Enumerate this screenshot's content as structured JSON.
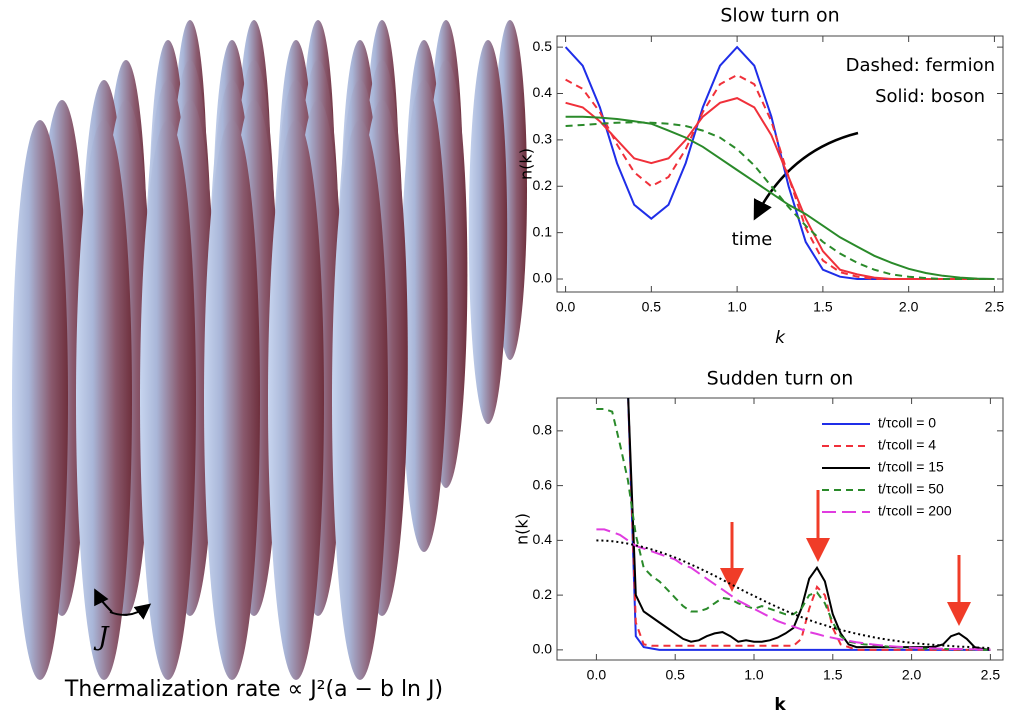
{
  "illustration": {
    "label": "J",
    "caption": "Thermalization rate ∝ J²(a − b ln J)"
  },
  "chart_data": [
    {
      "type": "line",
      "title": "Slow turn on",
      "x_label": "k",
      "y_label": "n(k)",
      "annotations": [
        "Dashed: fermion",
        "Solid: boson",
        "time"
      ],
      "xlim": [
        -0.05,
        2.55
      ],
      "ylim": [
        -0.028,
        0.524
      ],
      "xticks": [
        {
          "value": 0,
          "label": "0.0"
        },
        0.5,
        {
          "value": 1,
          "label": "1.0"
        },
        1.5,
        {
          "value": 2,
          "label": "2.0"
        },
        2.5
      ],
      "yticks": [
        {
          "value": 0,
          "label": "0.0"
        },
        0.1,
        0.2,
        0.3,
        0.4,
        0.5
      ],
      "x": [
        0,
        0.1,
        0.2,
        0.3,
        0.4,
        0.5,
        0.6,
        0.7,
        0.8,
        0.9,
        1.0,
        1.1,
        1.2,
        1.3,
        1.4,
        1.5,
        1.6,
        1.7,
        1.8,
        1.9,
        2.0,
        2.1,
        2.2,
        2.3,
        2.4,
        2.5
      ],
      "series": [
        {
          "color": "#1f2ee8",
          "style": "solid",
          "values": [
            0.5,
            0.46,
            0.37,
            0.25,
            0.16,
            0.13,
            0.16,
            0.25,
            0.37,
            0.46,
            0.5,
            0.46,
            0.35,
            0.2,
            0.08,
            0.02,
            0.005,
            0,
            0,
            0,
            0,
            0,
            0,
            0,
            0,
            0
          ]
        },
        {
          "color": "#f0303a",
          "style": "dashed",
          "values": [
            0.43,
            0.41,
            0.36,
            0.29,
            0.23,
            0.2,
            0.22,
            0.28,
            0.36,
            0.42,
            0.44,
            0.42,
            0.34,
            0.22,
            0.11,
            0.04,
            0.015,
            0.005,
            0,
            0,
            0,
            0,
            0,
            0,
            0,
            0
          ]
        },
        {
          "color": "#f0303a",
          "style": "solid",
          "values": [
            0.38,
            0.37,
            0.34,
            0.3,
            0.26,
            0.25,
            0.26,
            0.3,
            0.35,
            0.38,
            0.39,
            0.37,
            0.31,
            0.22,
            0.13,
            0.06,
            0.02,
            0.01,
            0.003,
            0,
            0,
            0,
            0,
            0,
            0,
            0
          ]
        },
        {
          "color": "#2a8a2a",
          "style": "dashed",
          "values": [
            0.33,
            0.332,
            0.335,
            0.337,
            0.338,
            0.337,
            0.335,
            0.33,
            0.32,
            0.305,
            0.28,
            0.245,
            0.2,
            0.155,
            0.115,
            0.08,
            0.055,
            0.035,
            0.02,
            0.01,
            0.005,
            0.002,
            0,
            0,
            0,
            0
          ]
        },
        {
          "color": "#2a8a2a",
          "style": "solid",
          "values": [
            0.35,
            0.35,
            0.348,
            0.345,
            0.34,
            0.335,
            0.32,
            0.305,
            0.285,
            0.26,
            0.235,
            0.21,
            0.185,
            0.16,
            0.14,
            0.115,
            0.09,
            0.07,
            0.05,
            0.035,
            0.022,
            0.013,
            0.007,
            0.003,
            0.001,
            0
          ]
        }
      ]
    },
    {
      "type": "line",
      "title": "Sudden turn on",
      "x_label": "k",
      "y_label": "n(k)",
      "xlim": [
        -0.25,
        2.58
      ],
      "ylim": [
        -0.037,
        0.92
      ],
      "xticks": [
        {
          "value": 0,
          "label": "0.0"
        },
        0.5,
        {
          "value": 1,
          "label": "1.0"
        },
        1.5,
        {
          "value": 2,
          "label": "2.0"
        },
        2.5
      ],
      "yticks": [
        {
          "value": 0,
          "label": "0.0"
        },
        0.2,
        0.4,
        0.6,
        0.8
      ],
      "x": [
        0,
        0.05,
        0.1,
        0.15,
        0.2,
        0.25,
        0.3,
        0.35,
        0.4,
        0.45,
        0.5,
        0.55,
        0.6,
        0.65,
        0.7,
        0.75,
        0.8,
        0.85,
        0.9,
        0.95,
        1.0,
        1.05,
        1.1,
        1.15,
        1.2,
        1.25,
        1.3,
        1.35,
        1.4,
        1.45,
        1.5,
        1.55,
        1.6,
        1.65,
        1.7,
        1.75,
        1.8,
        1.85,
        1.9,
        1.95,
        2.0,
        2.05,
        2.1,
        2.15,
        2.2,
        2.25,
        2.3,
        2.35,
        2.4,
        2.45,
        2.5
      ],
      "series": [
        {
          "name": "t/τcoll = 0",
          "color": "#1f2ee8",
          "style": "solid",
          "values": [
            null,
            null,
            null,
            null,
            0.95,
            0.05,
            0.01,
            0.005,
            0,
            0,
            0,
            0,
            0,
            0,
            0,
            0,
            0,
            0,
            0,
            0,
            0,
            0,
            0,
            0,
            0,
            0,
            0,
            0,
            0,
            0,
            0,
            0,
            0,
            0,
            0,
            0,
            0,
            0,
            0,
            0,
            0,
            0,
            0,
            0,
            0,
            0,
            0,
            0,
            0,
            0,
            0
          ]
        },
        {
          "name": "t/τcoll = 4",
          "color": "#f0303a",
          "style": "dashed",
          "values": [
            null,
            null,
            null,
            null,
            0.95,
            0.1,
            0.02,
            0.015,
            0.015,
            0.015,
            0.015,
            0.015,
            0.015,
            0.015,
            0.015,
            0.015,
            0.015,
            0.015,
            0.015,
            0.015,
            0.015,
            0.015,
            0.015,
            0.015,
            0.015,
            0.015,
            0.04,
            0.15,
            0.23,
            0.2,
            0.08,
            0.02,
            0.01,
            0,
            0,
            0,
            0,
            0,
            0,
            0,
            0,
            0,
            0,
            0,
            0,
            0,
            0,
            0,
            0,
            0,
            0
          ]
        },
        {
          "name": "t/τcoll = 15",
          "color": "#000000",
          "style": "solid",
          "values": [
            null,
            null,
            null,
            null,
            0.95,
            0.2,
            0.14,
            0.12,
            0.1,
            0.08,
            0.06,
            0.04,
            0.03,
            0.035,
            0.05,
            0.06,
            0.065,
            0.05,
            0.03,
            0.035,
            0.03,
            0.03,
            0.035,
            0.045,
            0.06,
            0.08,
            0.15,
            0.26,
            0.3,
            0.25,
            0.13,
            0.06,
            0.02,
            0.01,
            0.01,
            0.01,
            0.01,
            0.01,
            0.01,
            0.01,
            0.01,
            0.01,
            0.01,
            0.012,
            0.02,
            0.05,
            0.06,
            0.04,
            0.01,
            0.003,
            0
          ]
        },
        {
          "name": "t/τcoll = 50",
          "color": "#2a8a2a",
          "style": "dashed",
          "values": [
            0.88,
            0.88,
            0.87,
            0.75,
            0.62,
            0.42,
            0.3,
            0.27,
            0.25,
            0.22,
            0.19,
            0.16,
            0.14,
            0.14,
            0.15,
            0.17,
            0.19,
            0.185,
            0.17,
            0.16,
            0.15,
            0.16,
            0.15,
            0.14,
            0.13,
            0.13,
            0.15,
            0.2,
            0.21,
            0.17,
            0.1,
            0.05,
            0.03,
            0.025,
            0.02,
            0.018,
            0.015,
            0.012,
            0.01,
            0.008,
            0.006,
            0.005,
            0.004,
            0.003,
            0.003,
            0.002,
            0.002,
            0.001,
            0.001,
            0,
            0
          ]
        },
        {
          "name": "t/τcoll = 200",
          "color": "#e03ce0",
          "style": "long-dashed",
          "values": [
            0.44,
            0.44,
            0.43,
            0.42,
            0.4,
            0.38,
            0.37,
            0.36,
            0.35,
            0.34,
            0.33,
            0.31,
            0.3,
            0.28,
            0.26,
            0.24,
            0.22,
            0.2,
            0.18,
            0.165,
            0.15,
            0.135,
            0.12,
            0.105,
            0.095,
            0.085,
            0.075,
            0.065,
            0.058,
            0.05,
            0.044,
            0.038,
            0.033,
            0.028,
            0.024,
            0.02,
            0.017,
            0.014,
            0.012,
            0.01,
            0.008,
            0.007,
            0.006,
            0.005,
            0.004,
            0.003,
            0.003,
            0.002,
            0.002,
            0.001,
            0.001
          ]
        },
        {
          "color": "#000000",
          "style": "dotted",
          "values": [
            0.4,
            0.399,
            0.397,
            0.393,
            0.388,
            0.382,
            0.375,
            0.367,
            0.358,
            0.348,
            0.337,
            0.325,
            0.312,
            0.299,
            0.285,
            0.271,
            0.256,
            0.241,
            0.226,
            0.211,
            0.197,
            0.183,
            0.169,
            0.156,
            0.143,
            0.131,
            0.12,
            0.109,
            0.099,
            0.09,
            0.081,
            0.073,
            0.066,
            0.059,
            0.053,
            0.047,
            0.042,
            0.037,
            0.033,
            0.029,
            0.026,
            0.023,
            0.02,
            0.018,
            0.016,
            0.014,
            0.012,
            0.011,
            0.009,
            0.008,
            0.007
          ]
        }
      ]
    }
  ]
}
